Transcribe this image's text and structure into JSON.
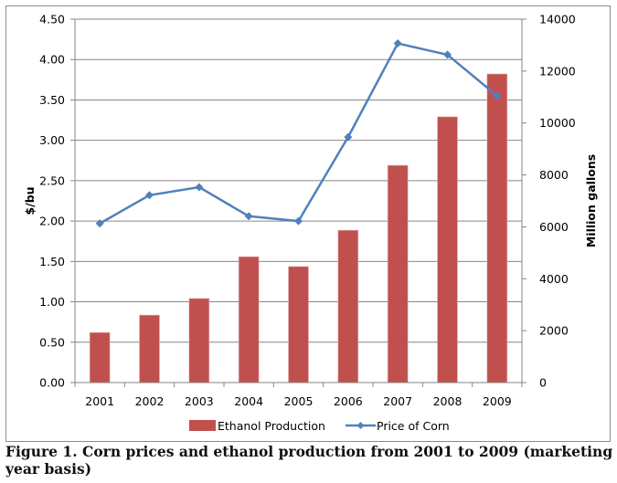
{
  "chart_data": {
    "type": "bar+line",
    "title": "",
    "caption": "Figure 1. Corn prices and ethanol production from 2001 to 2009 (marketing year basis)",
    "categories": [
      "2001",
      "2002",
      "2003",
      "2004",
      "2005",
      "2006",
      "2007",
      "2008",
      "2009"
    ],
    "series": [
      {
        "name": "Ethanol Production",
        "type": "bar",
        "axis": "right",
        "color": "#c0504d",
        "values": [
          1930,
          2600,
          3240,
          4850,
          4470,
          5870,
          8370,
          10240,
          11890
        ]
      },
      {
        "name": "Price of Corn",
        "type": "line",
        "axis": "left",
        "color": "#4f81bd",
        "marker": "diamond",
        "values": [
          1.97,
          2.32,
          2.42,
          2.06,
          2.0,
          3.04,
          4.2,
          4.06,
          3.55
        ]
      }
    ],
    "left_axis": {
      "label": "$/bu",
      "range": [
        0,
        4.5
      ],
      "ticks": [
        "0.00",
        "0.50",
        "1.00",
        "1.50",
        "2.00",
        "2.50",
        "3.00",
        "3.50",
        "4.00",
        "4.50"
      ],
      "tick_values": [
        0,
        0.5,
        1.0,
        1.5,
        2.0,
        2.5,
        3.0,
        3.5,
        4.0,
        4.5
      ]
    },
    "right_axis": {
      "label": "Million gallons",
      "range": [
        0,
        14000
      ],
      "ticks": [
        "0",
        "2000",
        "4000",
        "6000",
        "8000",
        "10000",
        "12000",
        "14000"
      ],
      "tick_values": [
        0,
        2000,
        4000,
        6000,
        8000,
        10000,
        12000,
        14000
      ]
    },
    "xlabel": "",
    "grid": true,
    "legend": {
      "position": "bottom",
      "entries": [
        "Ethanol Production",
        "Price of Corn"
      ]
    }
  }
}
